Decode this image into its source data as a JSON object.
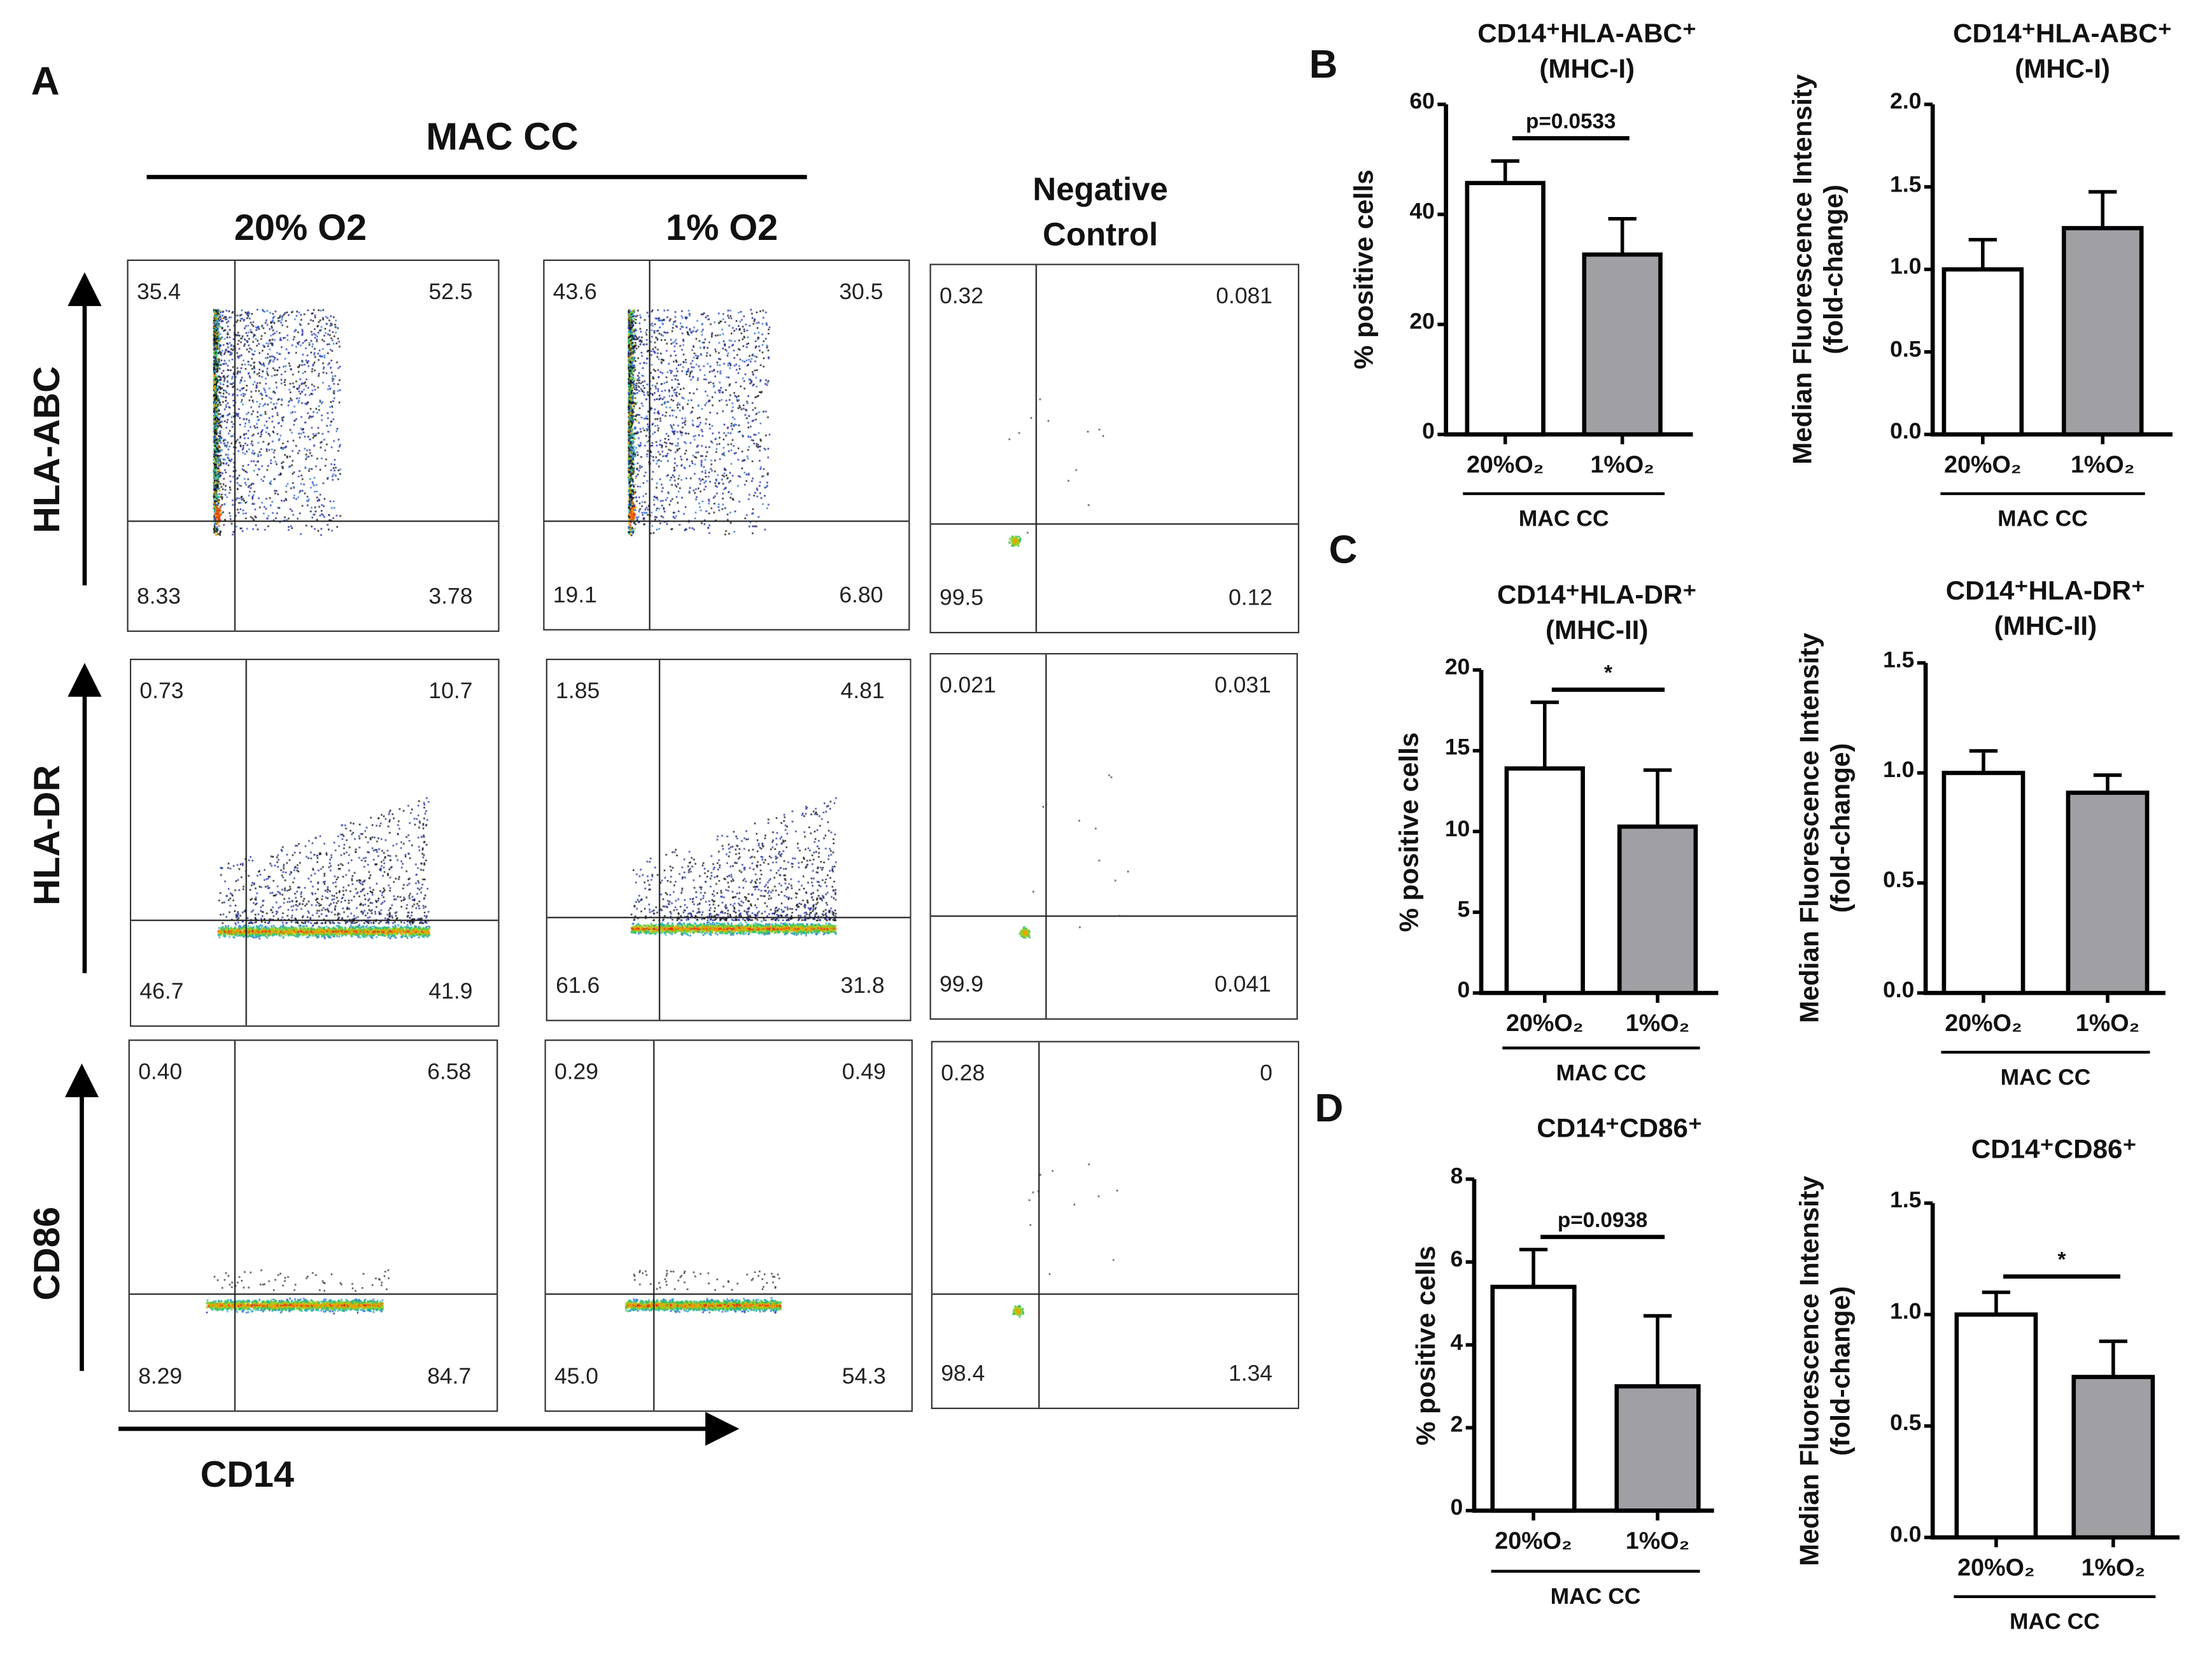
{
  "panel_A": {
    "letter": "A",
    "group_header": "MAC CC",
    "columns": [
      "20% O2",
      "1% O2"
    ],
    "negative_control": [
      "Negative",
      "Control"
    ],
    "rows": [
      "HLA-ABC",
      "HLA-DR",
      "CD86"
    ],
    "x_axis_label": "CD14",
    "plots": [
      {
        "row": "HLA-ABC",
        "col": "20% O2",
        "quadrants": {
          "ul": "35.4",
          "ur": "52.5",
          "ll": "8.33",
          "lr": "3.78"
        }
      },
      {
        "row": "HLA-ABC",
        "col": "1% O2",
        "quadrants": {
          "ul": "43.6",
          "ur": "30.5",
          "ll": "19.1",
          "lr": "6.80"
        }
      },
      {
        "row": "HLA-ABC",
        "col": "Negative Control",
        "quadrants": {
          "ul": "0.32",
          "ur": "0.081",
          "ll": "99.5",
          "lr": "0.12"
        }
      },
      {
        "row": "HLA-DR",
        "col": "20% O2",
        "quadrants": {
          "ul": "0.73",
          "ur": "10.7",
          "ll": "46.7",
          "lr": "41.9"
        }
      },
      {
        "row": "HLA-DR",
        "col": "1% O2",
        "quadrants": {
          "ul": "1.85",
          "ur": "4.81",
          "ll": "61.6",
          "lr": "31.8"
        }
      },
      {
        "row": "HLA-DR",
        "col": "Negative Control",
        "quadrants": {
          "ul": "0.021",
          "ur": "0.031",
          "ll": "99.9",
          "lr": "0.041"
        }
      },
      {
        "row": "CD86",
        "col": "20% O2",
        "quadrants": {
          "ul": "0.40",
          "ur": "6.58",
          "ll": "8.29",
          "lr": "84.7"
        }
      },
      {
        "row": "CD86",
        "col": "1% O2",
        "quadrants": {
          "ul": "0.29",
          "ur": "0.49",
          "ll": "45.0",
          "lr": "54.3"
        }
      },
      {
        "row": "CD86",
        "col": "Negative Control",
        "quadrants": {
          "ul": "0.28",
          "ur": "0",
          "ll": "98.4",
          "lr": "1.34"
        }
      }
    ]
  },
  "colors": {
    "white_bar": "#ffffff",
    "gray_bar": "#a09fa4",
    "axis": "#000000"
  },
  "chart_data": [
    {
      "panel": "B",
      "type": "bar",
      "title": [
        "CD14⁺HLA-ABC⁺",
        "(MHC-I)"
      ],
      "ylabel": [
        "% positive cells"
      ],
      "xlabel": "MAC CC",
      "categories": [
        "20%O₂",
        "1%O₂"
      ],
      "values": [
        45.7,
        32.7
      ],
      "errors": [
        4.0,
        6.5
      ],
      "ylim": [
        0,
        60
      ],
      "yticks": [
        "0",
        "20",
        "40",
        "60"
      ],
      "significance": "p=0.0533"
    },
    {
      "panel": "B",
      "type": "bar",
      "title": [
        "CD14⁺HLA-ABC⁺",
        "(MHC-I)"
      ],
      "ylabel": [
        "Median Fluorescence Intensity",
        "(fold-change)"
      ],
      "xlabel": "MAC CC",
      "categories": [
        "20%O₂",
        "1%O₂"
      ],
      "values": [
        1.0,
        1.25
      ],
      "errors": [
        0.18,
        0.22
      ],
      "ylim": [
        0,
        2.0
      ],
      "yticks": [
        "0.0",
        "0.5",
        "1.0",
        "1.5",
        "2.0"
      ],
      "significance": ""
    },
    {
      "panel": "C",
      "type": "bar",
      "title": [
        "CD14⁺HLA-DR⁺",
        "(MHC-II)"
      ],
      "ylabel": [
        "% positive cells"
      ],
      "xlabel": "MAC CC",
      "categories": [
        "20%O₂",
        "1%O₂"
      ],
      "values": [
        13.9,
        10.3
      ],
      "errors": [
        4.1,
        3.5
      ],
      "ylim": [
        0,
        20
      ],
      "yticks": [
        "0",
        "5",
        "10",
        "15",
        "20"
      ],
      "significance": "*"
    },
    {
      "panel": "C",
      "type": "bar",
      "title": [
        "CD14⁺HLA-DR⁺",
        "(MHC-II)"
      ],
      "ylabel": [
        "Median Fluorescence Intensity",
        "(fold-change)"
      ],
      "xlabel": "MAC CC",
      "categories": [
        "20%O₂",
        "1%O₂"
      ],
      "values": [
        1.0,
        0.91
      ],
      "errors": [
        0.1,
        0.08
      ],
      "ylim": [
        0,
        1.5
      ],
      "yticks": [
        "0.0",
        "0.5",
        "1.0",
        "1.5"
      ],
      "significance": ""
    },
    {
      "panel": "D",
      "type": "bar",
      "title": [
        "CD14⁺CD86⁺"
      ],
      "ylabel": [
        "% positive cells"
      ],
      "xlabel": "MAC CC",
      "categories": [
        "20%O₂",
        "1%O₂"
      ],
      "values": [
        5.4,
        3.0
      ],
      "errors": [
        0.9,
        1.7
      ],
      "ylim": [
        0,
        8
      ],
      "yticks": [
        "0",
        "2",
        "4",
        "6",
        "8"
      ],
      "significance": "p=0.0938"
    },
    {
      "panel": "D",
      "type": "bar",
      "title": [
        "CD14⁺CD86⁺"
      ],
      "ylabel": [
        "Median Fluorescence Intensity",
        "(fold-change)"
      ],
      "xlabel": "MAC CC",
      "categories": [
        "20%O₂",
        "1%O₂"
      ],
      "values": [
        1.0,
        0.72
      ],
      "errors": [
        0.1,
        0.16
      ],
      "ylim": [
        0,
        1.5
      ],
      "yticks": [
        "0.0",
        "0.5",
        "1.0",
        "1.5"
      ],
      "significance": "*"
    }
  ]
}
